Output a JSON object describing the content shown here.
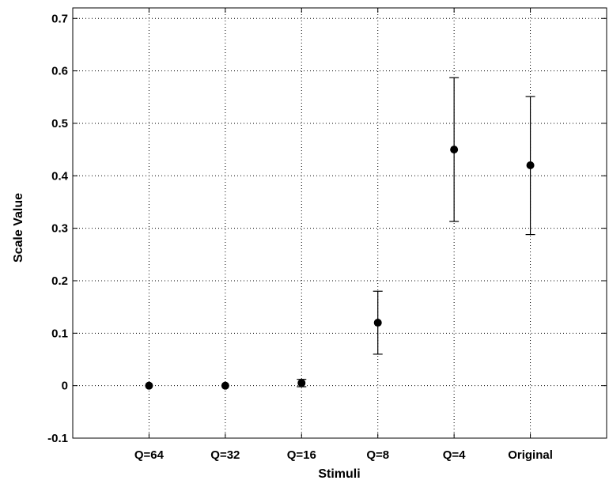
{
  "chart_data": {
    "type": "scatter",
    "title": "",
    "xlabel": "Stimuli",
    "ylabel": "Scale Value",
    "categories": [
      "Q=64",
      "Q=32",
      "Q=16",
      "Q=8",
      "Q=4",
      "Original"
    ],
    "x_range": [
      0,
      7
    ],
    "ylim": [
      -0.1,
      0.72
    ],
    "yticks": [
      -0.1,
      0,
      0.1,
      0.2,
      0.3,
      0.4,
      0.5,
      0.6,
      0.7
    ],
    "ytick_labels": [
      "-0.1",
      "0",
      "0.1",
      "0.2",
      "0.3",
      "0.4",
      "0.5",
      "0.6",
      "0.7"
    ],
    "grid": true,
    "series": [
      {
        "values": [
          0,
          0,
          0.005,
          0.12,
          0.45,
          0.42
        ],
        "error_low": [
          0,
          0,
          -0.002,
          0.06,
          0.313,
          0.288
        ],
        "error_high": [
          0,
          0,
          0.012,
          0.18,
          0.587,
          0.551
        ]
      }
    ]
  }
}
